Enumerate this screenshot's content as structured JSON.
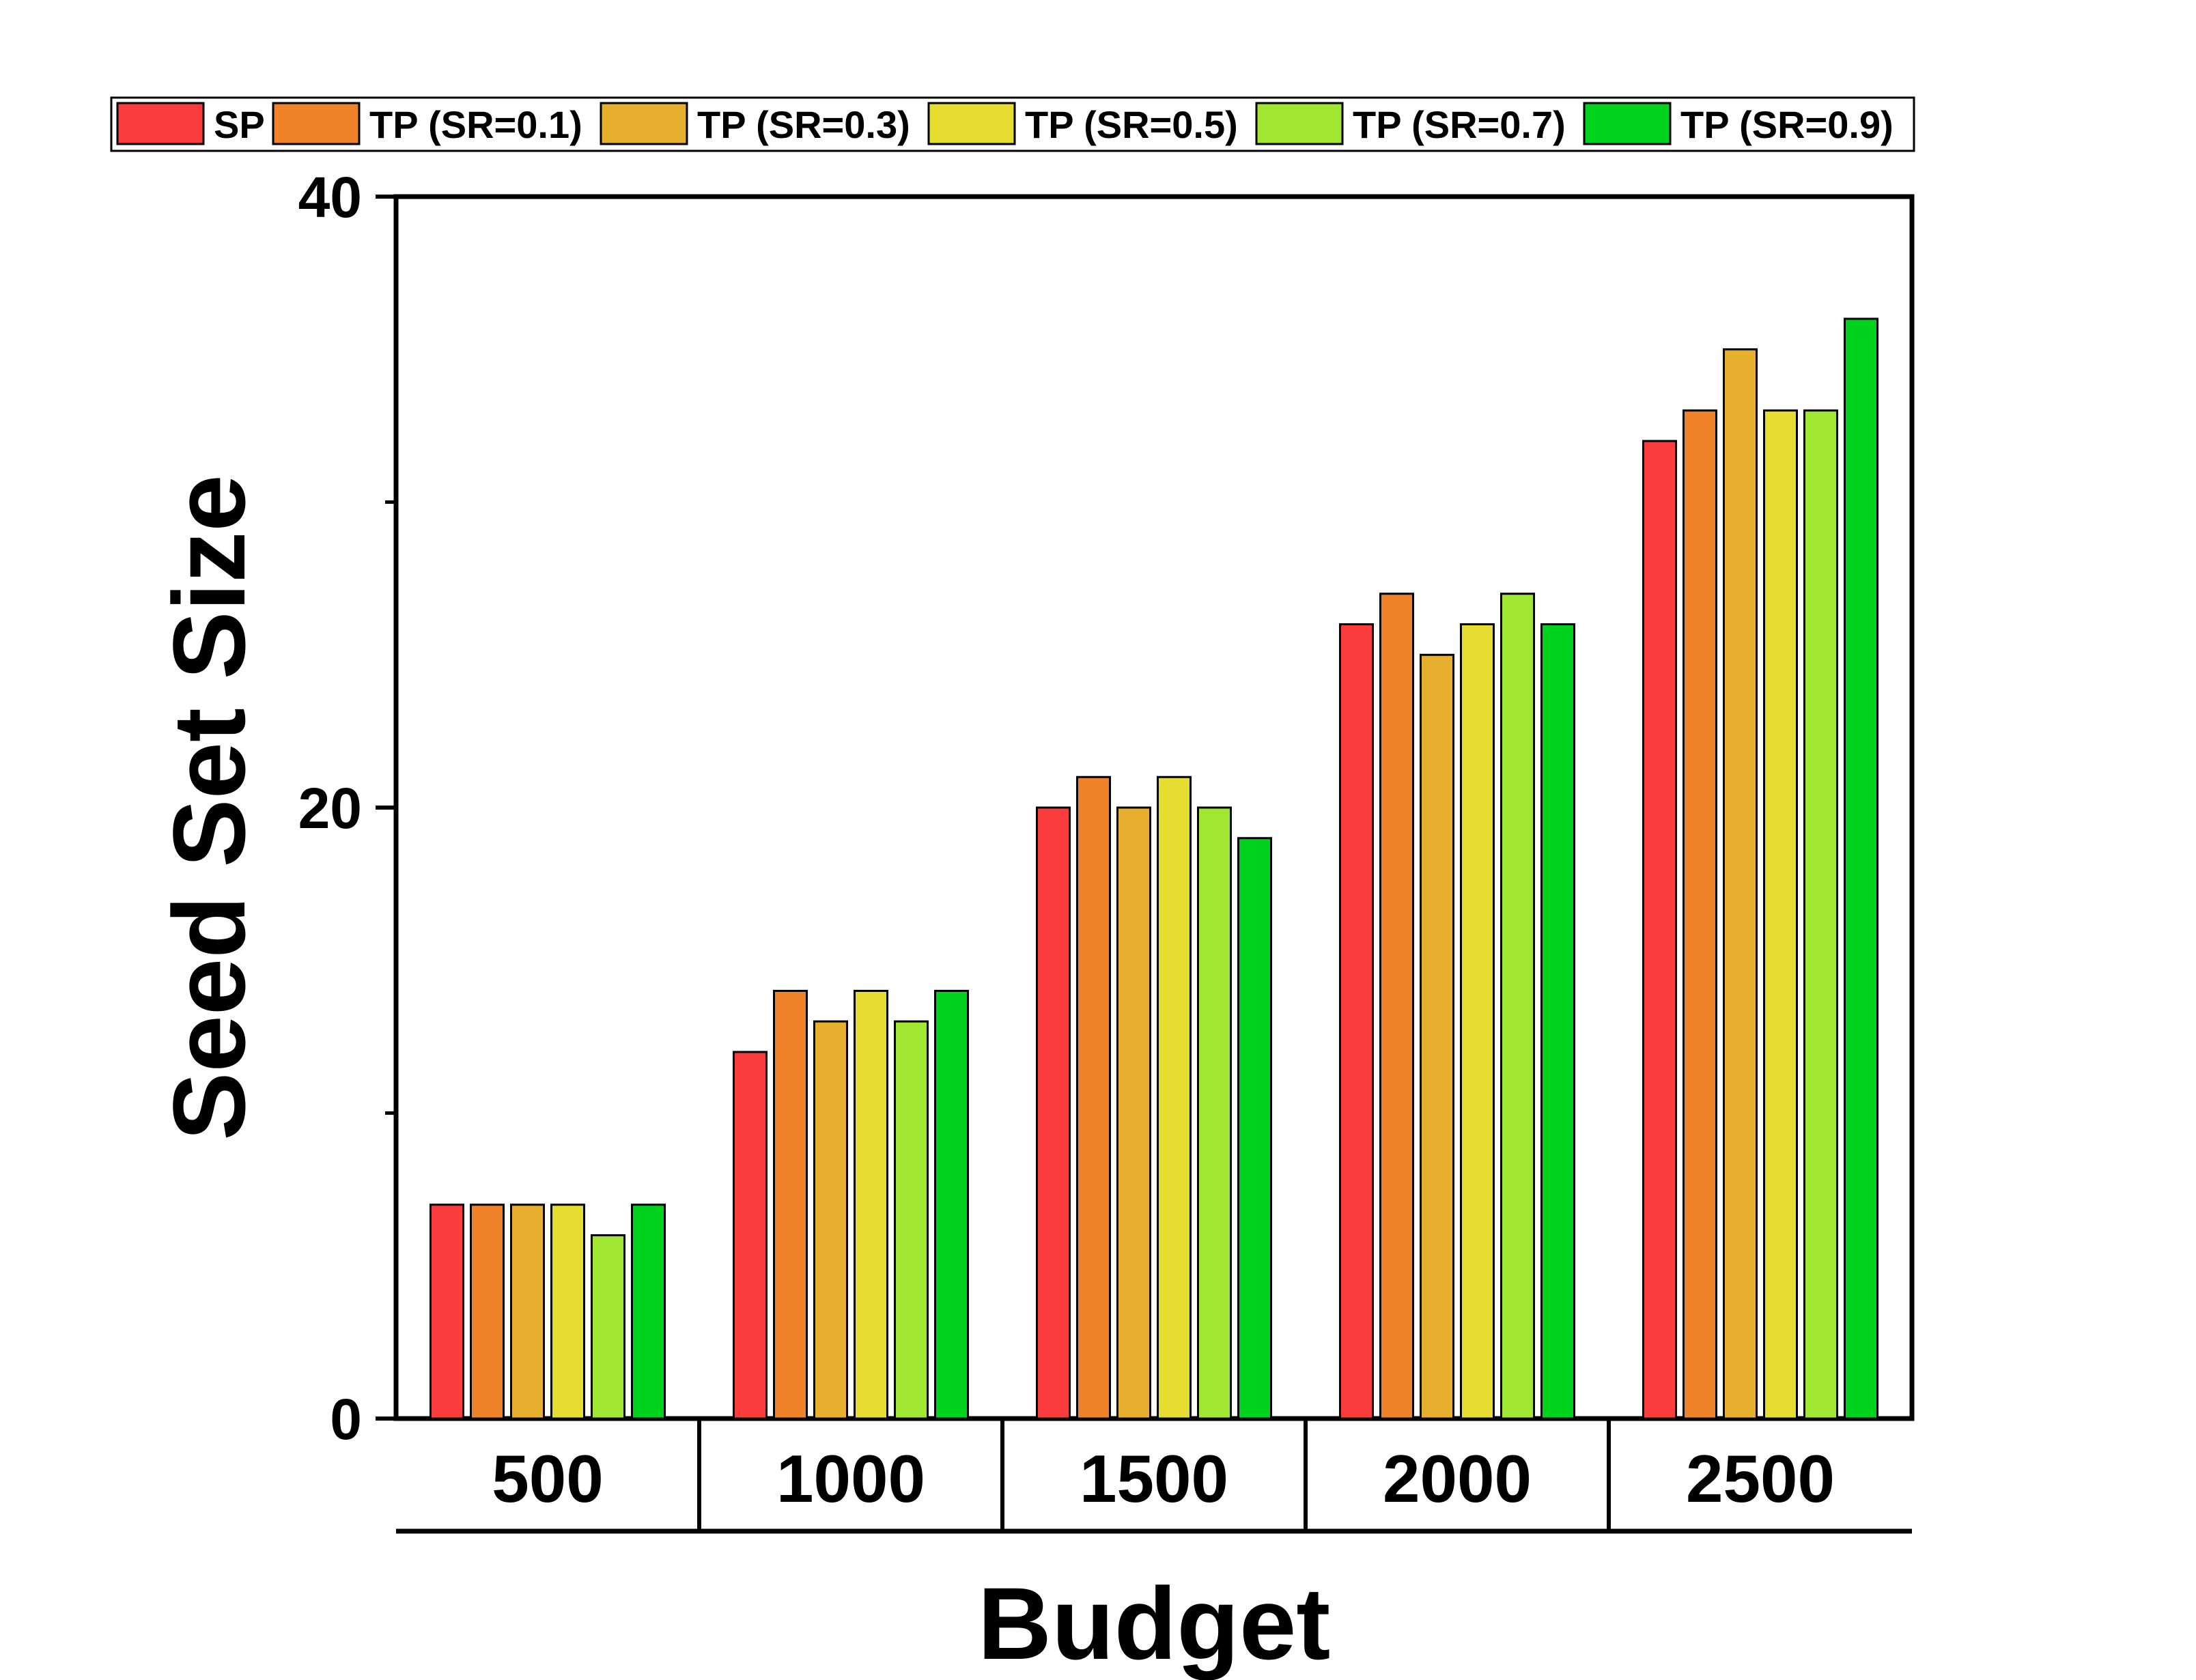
{
  "chart_data": {
    "type": "bar",
    "xlabel": "Budget",
    "ylabel": "Seed Set Size",
    "categories": [
      "500",
      "1000",
      "1500",
      "2000",
      "2500"
    ],
    "ylim": [
      0,
      40
    ],
    "yticks": [
      "0",
      "20",
      "40"
    ],
    "legend_position": "top",
    "grid": false,
    "series": [
      {
        "name": "SP",
        "color": "#fa3c3c",
        "values": [
          7,
          12,
          20,
          26,
          32
        ]
      },
      {
        "name": "TP (SR=0.1)",
        "color": "#f0822a",
        "values": [
          7,
          14,
          21,
          27,
          33
        ]
      },
      {
        "name": "TP (SR=0.3)",
        "color": "#e6b02e",
        "values": [
          7,
          13,
          20,
          25,
          35
        ]
      },
      {
        "name": "TP (SR=0.5)",
        "color": "#e6dc32",
        "values": [
          7,
          14,
          21,
          26,
          33
        ]
      },
      {
        "name": "TP (SR=0.7)",
        "color": "#a0e632",
        "values": [
          6,
          13,
          20,
          27,
          33
        ]
      },
      {
        "name": "TP (SR=0.9)",
        "color": "#00d21e",
        "values": [
          7,
          14,
          19,
          26,
          36
        ]
      }
    ]
  }
}
